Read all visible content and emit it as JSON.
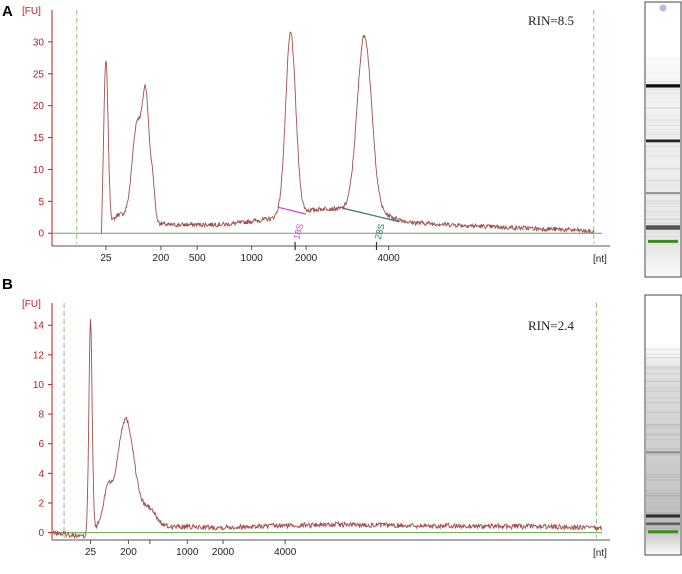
{
  "chart_data": [
    {
      "type": "line",
      "panel": "A",
      "ylabel": "[FU]",
      "xlabel": "[nt]",
      "rin": "RIN=8.5",
      "ylim": [
        -2,
        35
      ],
      "y_ticks": [
        0,
        5,
        10,
        15,
        20,
        25,
        30
      ],
      "x_ticks": [
        {
          "label": "25",
          "u": 0.098
        },
        {
          "label": "200",
          "u": 0.198
        },
        {
          "label": "500",
          "u": 0.264
        },
        {
          "label": "1000",
          "u": 0.363
        },
        {
          "label": "2000",
          "u": 0.462
        },
        {
          "label": "4000",
          "u": 0.612
        }
      ],
      "markers": [
        {
          "label": "18S",
          "u": 0.442,
          "color": "#cc44cc"
        },
        {
          "label": "28S",
          "u": 0.59,
          "color": "#2f6f6f"
        }
      ],
      "colors": {
        "trace": "#a05050",
        "baseline": "#6aa84f",
        "axis": "#b22222",
        "m18s": "#cc44cc",
        "m28s": "#2f6f6f"
      },
      "peaks": [
        {
          "u": 0.098,
          "h": 26.5,
          "w": 0.004
        },
        {
          "u": 0.155,
          "h": 15.0,
          "w": 0.009
        },
        {
          "u": 0.171,
          "h": 17.5,
          "w": 0.006
        },
        {
          "u": 0.183,
          "h": 5.5,
          "w": 0.004
        },
        {
          "u": 0.434,
          "h": 27.5,
          "w": 0.009
        },
        {
          "u": 0.568,
          "h": 27.5,
          "w": 0.013
        }
      ],
      "trace": {
        "start": 0.093,
        "end": 0.985,
        "bg_knots": [
          [
            0.093,
            0.0
          ],
          [
            0.12,
            3.0
          ],
          [
            0.21,
            1.3
          ],
          [
            0.32,
            1.4
          ],
          [
            0.4,
            2.3
          ],
          [
            0.43,
            4.0
          ],
          [
            0.46,
            3.5
          ],
          [
            0.5,
            3.9
          ],
          [
            0.58,
            3.5
          ],
          [
            0.65,
            1.7
          ],
          [
            0.8,
            1.0
          ],
          [
            0.95,
            0.5
          ],
          [
            0.985,
            0.2
          ]
        ]
      }
    },
    {
      "type": "line",
      "panel": "B",
      "ylabel": "[FU]",
      "xlabel": "[nt]",
      "rin": "RIN=2.4",
      "ylim": [
        -0.5,
        15.5
      ],
      "y_ticks": [
        0,
        2,
        4,
        6,
        8,
        10,
        12,
        14
      ],
      "x_ticks": [
        {
          "label": "25",
          "u": 0.07
        },
        {
          "label": "200",
          "u": 0.139
        },
        {
          "label": "",
          "u": 0.178
        },
        {
          "label": "1000",
          "u": 0.246
        },
        {
          "label": "2000",
          "u": 0.311
        },
        {
          "label": "4000",
          "u": 0.424
        }
      ],
      "markers": [],
      "colors": {
        "trace": "#a05050",
        "baseline": "#6aa84f",
        "axis": "#b22222"
      },
      "peaks": [
        {
          "u": 0.07,
          "h": 14.6,
          "w": 0.003
        },
        {
          "u": 0.101,
          "h": 1.8,
          "w": 0.006
        },
        {
          "u": 0.134,
          "h": 6.5,
          "w": 0.015
        },
        {
          "u": 0.178,
          "h": 0.7,
          "w": 0.01
        }
      ],
      "trace": {
        "start": 0.0,
        "end": 1.0,
        "bg_knots": [
          [
            0.0,
            0.0
          ],
          [
            0.068,
            -0.3
          ],
          [
            0.09,
            0.9
          ],
          [
            0.13,
            1.2
          ],
          [
            0.17,
            1.0
          ],
          [
            0.21,
            0.4
          ],
          [
            0.3,
            0.35
          ],
          [
            0.5,
            0.55
          ],
          [
            0.7,
            0.45
          ],
          [
            0.9,
            0.4
          ],
          [
            1.0,
            0.3
          ]
        ]
      }
    }
  ],
  "gels": [
    {
      "panel": "A",
      "bands": [
        {
          "y": 0.305,
          "dark": 0.95,
          "thick": 0.012
        },
        {
          "y": 0.505,
          "dark": 0.85,
          "thick": 0.01
        },
        {
          "y": 0.695,
          "dark": 0.35,
          "thick": 0.008
        },
        {
          "y": 0.82,
          "dark": 0.65,
          "thick": 0.016
        }
      ],
      "smear": 0.08,
      "green_y": 0.865,
      "dot_y": 0.02
    },
    {
      "panel": "B",
      "bands": [
        {
          "y": 0.605,
          "dark": 0.25,
          "thick": 0.01
        },
        {
          "y": 0.85,
          "dark": 0.75,
          "thick": 0.012
        },
        {
          "y": 0.88,
          "dark": 0.5,
          "thick": 0.01
        }
      ],
      "smear": 0.22,
      "green_y": 0.905,
      "dot_y": -1
    }
  ]
}
